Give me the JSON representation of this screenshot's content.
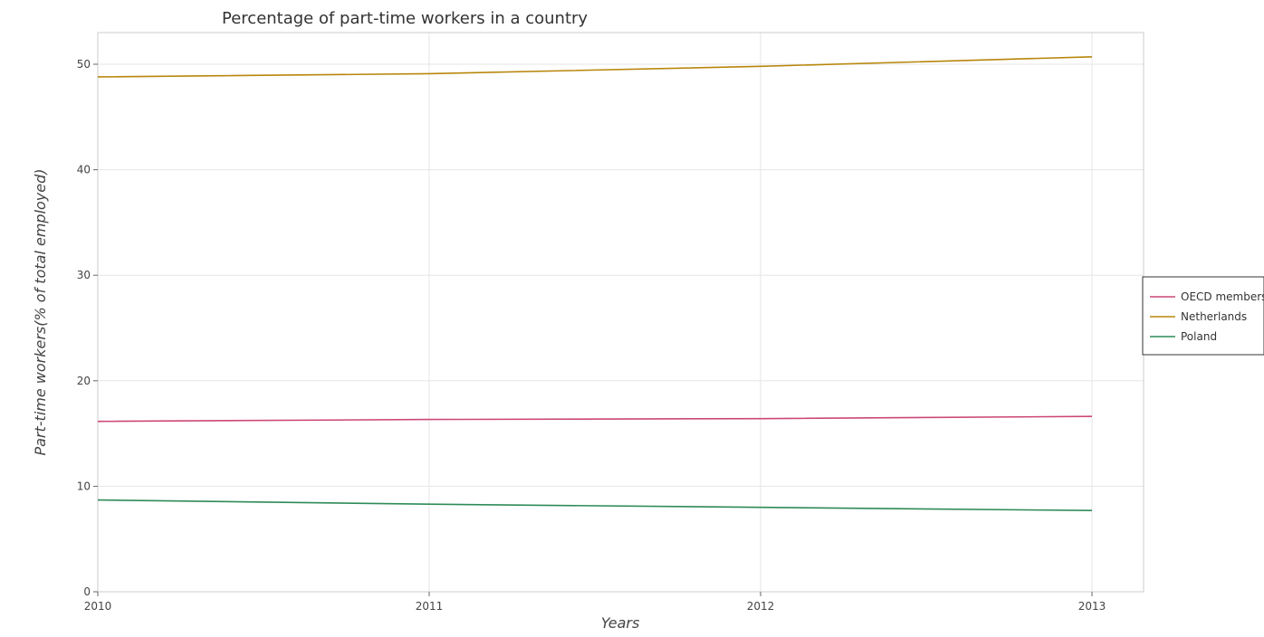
{
  "chart_data": {
    "type": "line",
    "title": "Percentage of part-time workers in a country",
    "xlabel": "Years",
    "ylabel": "Part-time workers(% of total employed)",
    "categories": [
      "2010",
      "2011",
      "2012",
      "2013"
    ],
    "yticks": [
      0,
      10,
      20,
      30,
      40,
      50
    ],
    "ylim": [
      0,
      53
    ],
    "grid": true,
    "legend_position": "right",
    "series": [
      {
        "name": "OECD members",
        "color": "#cc4778",
        "values": [
          16.15,
          16.33,
          16.41,
          16.62
        ]
      },
      {
        "name": "Netherlands",
        "color": "#b8860b",
        "values": [
          48.8,
          49.1,
          49.8,
          50.7
        ]
      },
      {
        "name": "Poland",
        "color": "#2e8b57",
        "values": [
          8.7,
          8.3,
          8.0,
          7.7
        ]
      }
    ]
  }
}
